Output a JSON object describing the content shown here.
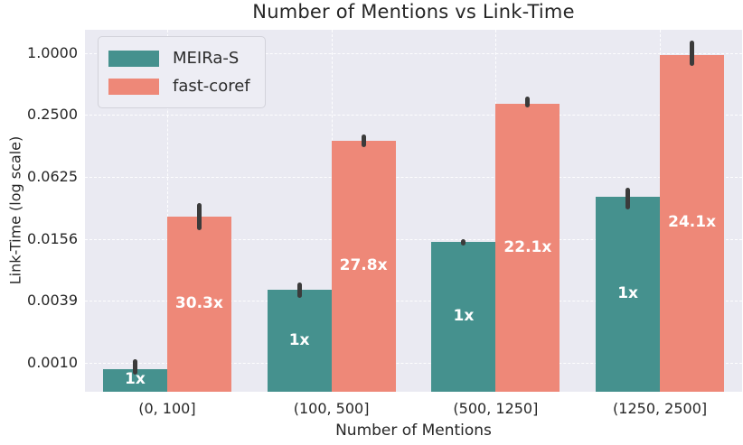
{
  "colors": {
    "figure_background": "#ffffff",
    "plot_background": "#eaeaf2",
    "gridline": "#ffffff",
    "error_bar": "#3b3b3b",
    "text": "#262626",
    "bar_label_text": "#ffffff",
    "legend_background": "#ededf4",
    "legend_border": "#d2d2da",
    "meira_s": "#45918e",
    "fast_coref": "#ee8878"
  },
  "chart_data": {
    "type": "bar",
    "title": "Number of Mentions vs Link-Time",
    "xlabel": "Number of Mentions",
    "ylabel": "Link-Time (log scale)",
    "y_scale": "log",
    "grid": true,
    "legend_position": "upper left",
    "ylim": [
      0.00051,
      1.68
    ],
    "yticks": {
      "values": [
        1.0,
        0.25,
        0.0625,
        0.015625,
        0.00390625,
        0.0009765625
      ],
      "labels": [
        "1.0000",
        "0.2500",
        "0.0625",
        "0.0156",
        "0.0039",
        "0.0010"
      ]
    },
    "categories": [
      "(0, 100]",
      "(100, 500]",
      "(500, 1250]",
      "(1250, 2500]"
    ],
    "series": [
      {
        "name": "MEIRa-S",
        "color": "#45918e",
        "values": [
          0.00085,
          0.005,
          0.0145,
          0.04
        ],
        "error_lo": [
          0.00074,
          0.0042,
          0.0134,
          0.03
        ],
        "error_hi": [
          0.00105,
          0.0059,
          0.0156,
          0.049
        ],
        "bar_labels": [
          "1x",
          "1x",
          "1x",
          "1x"
        ]
      },
      {
        "name": "fast-coref",
        "color": "#ee8878",
        "values": [
          0.0257,
          0.139,
          0.32,
          0.963
        ],
        "error_lo": [
          0.019,
          0.121,
          0.294,
          0.75
        ],
        "error_hi": [
          0.035,
          0.161,
          0.374,
          1.32
        ],
        "bar_labels": [
          "30.3x",
          "27.8x",
          "22.1x",
          "24.1x"
        ]
      }
    ]
  }
}
